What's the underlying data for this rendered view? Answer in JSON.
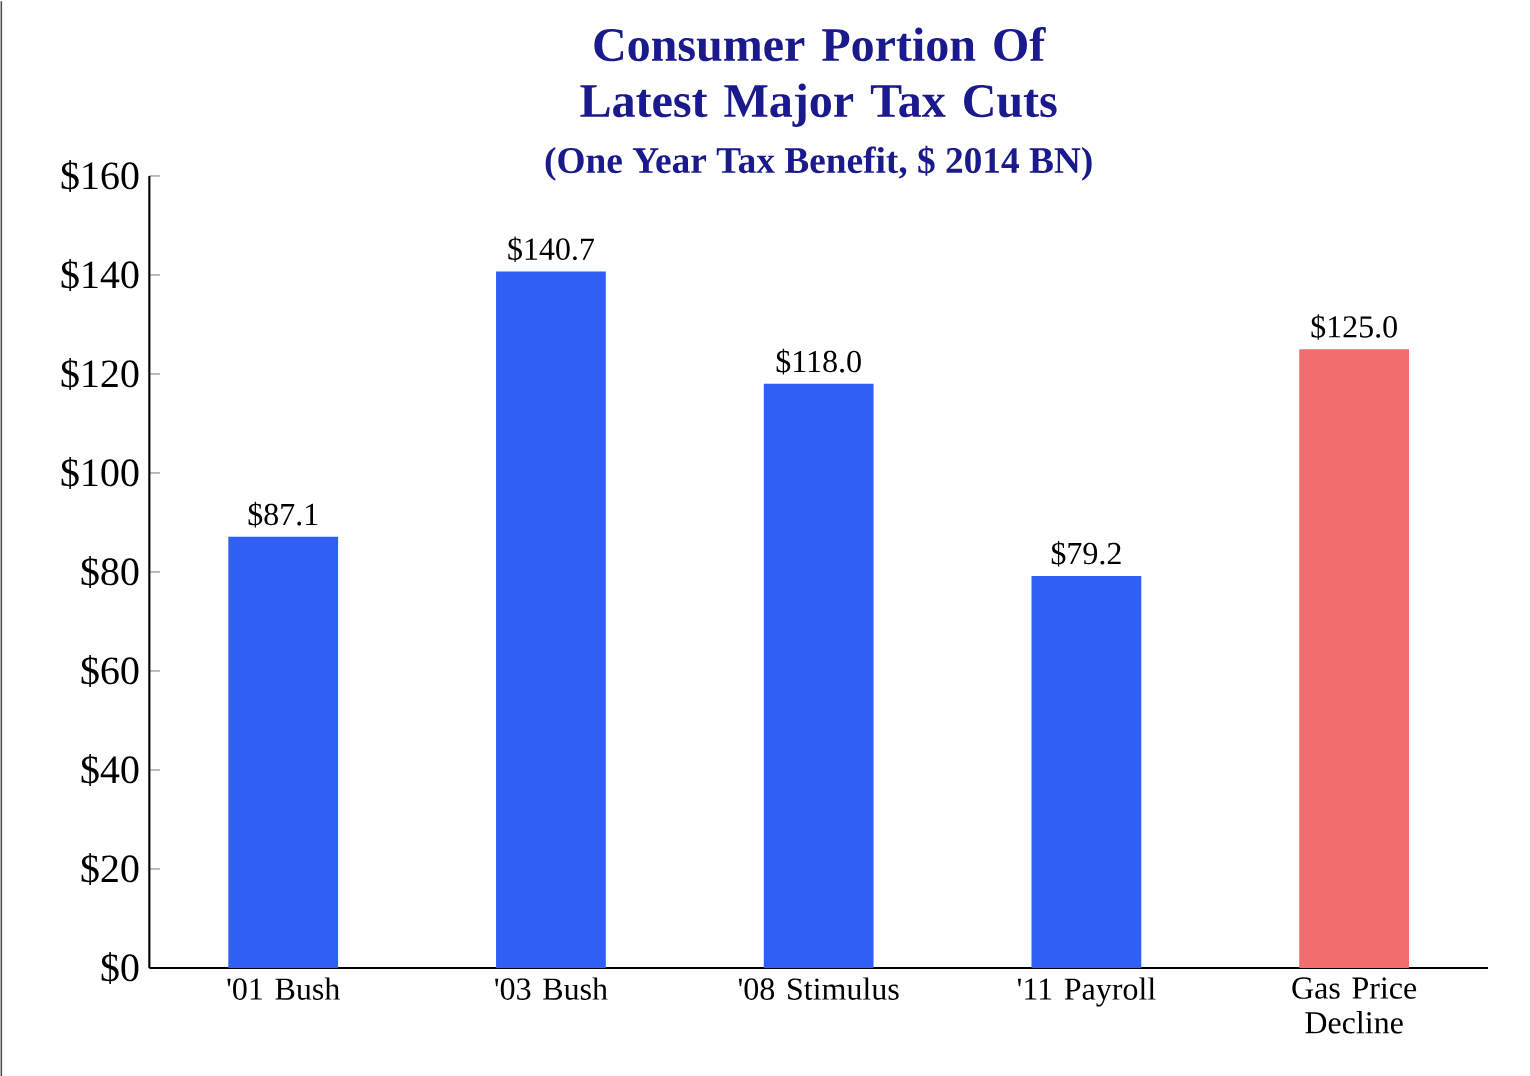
{
  "chart_data": {
    "type": "bar",
    "title": "Consumer Portion Of Latest Major Tax Cuts",
    "subtitle": "(One Year Tax Benefit, $ 2014 BN)",
    "categories": [
      "'01 Bush",
      "'03 Bush",
      "'08 Stimulus",
      "'11 Payroll",
      "Gas Price Decline"
    ],
    "values": [
      87.1,
      140.7,
      118.0,
      79.2,
      125.0
    ],
    "colors": [
      "#2f5ff5",
      "#2f5ff5",
      "#2f5ff5",
      "#2f5ff5",
      "#f26d6d"
    ],
    "value_labels": [
      "$87.1",
      "$140.7",
      "$118.0",
      "$79.2",
      "$125.0"
    ],
    "ylim": [
      0,
      160
    ],
    "yticks": [
      {
        "value": 0,
        "label": "$0"
      },
      {
        "value": 20,
        "label": "$20"
      },
      {
        "value": 40,
        "label": "$40"
      },
      {
        "value": 60,
        "label": "$60"
      },
      {
        "value": 80,
        "label": "$80"
      },
      {
        "value": 100,
        "label": "$100"
      },
      {
        "value": 120,
        "label": "$120"
      },
      {
        "value": 140,
        "label": "$140"
      },
      {
        "value": 160,
        "label": "$160"
      }
    ]
  }
}
